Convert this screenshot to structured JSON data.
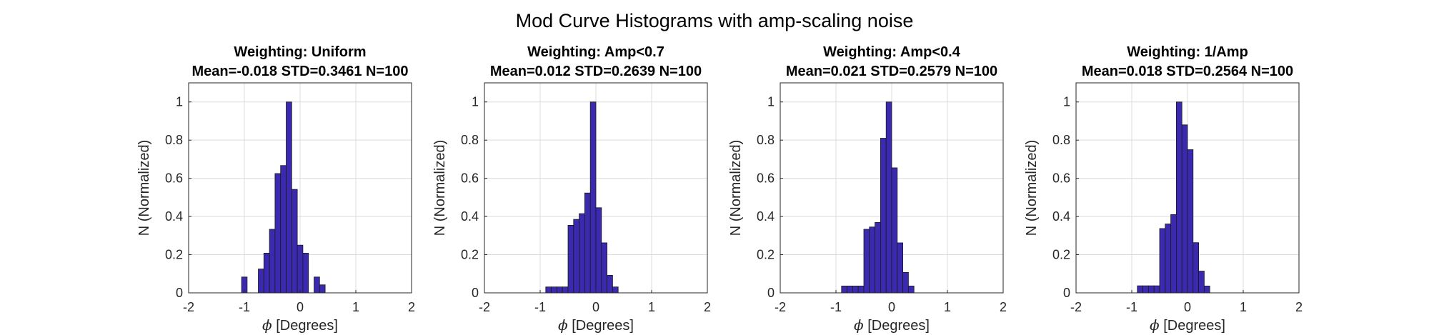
{
  "figure_title": "Mod Curve Histograms with amp-scaling noise",
  "colors": {
    "bar_fill": "#3b2ab0",
    "bar_edge": "#1a1a1a",
    "grid": "#dcdcdc"
  },
  "chart_data": [
    {
      "type": "bar",
      "title": "Weighting: Uniform",
      "subtitle": "Mean=-0.018 STD=0.3461 N=100",
      "xlabel_symbol": "ϕ",
      "xlabel": "[Degrees]",
      "ylabel": "N (Normalized)",
      "xlim": [
        -2,
        2
      ],
      "ylim": [
        0,
        1.1
      ],
      "xticks": [
        "-2",
        "-1",
        "0",
        "1",
        "2"
      ],
      "yticks": [
        "0",
        "0.2",
        "0.4",
        "0.6",
        "0.8",
        "1"
      ],
      "grid": true,
      "bin_edges": [
        -1.55,
        -1.45,
        -1.35,
        -1.25,
        -1.15,
        -1.05,
        -0.95,
        -0.85,
        -0.75,
        -0.65,
        -0.55,
        -0.45,
        -0.35,
        -0.25,
        -0.15,
        -0.05,
        0.05,
        0.15,
        0.25,
        0.35,
        0.45,
        0.55,
        0.65,
        0.75,
        0.85,
        0.95,
        1.05,
        1.15,
        1.25,
        1.35,
        1.45,
        1.55,
        1.65
      ],
      "values": [
        0,
        0,
        0,
        0,
        0,
        0.083,
        0,
        0,
        0.125,
        0.208,
        0.333,
        0.625,
        0.667,
        1.0,
        0.542,
        0.25,
        0.208,
        0,
        0.083,
        0.042,
        0,
        0,
        0,
        0,
        0,
        0,
        0,
        0,
        0,
        0,
        0,
        0
      ],
      "value_bins_start": 0
    },
    {
      "type": "bar",
      "title": "Weighting: Amp<0.7",
      "subtitle": "Mean=0.012 STD=0.2639 N=100",
      "xlabel_symbol": "ϕ",
      "xlabel": "[Degrees]",
      "ylabel": "N (Normalized)",
      "xlim": [
        -2,
        2
      ],
      "ylim": [
        0,
        1.1
      ],
      "xticks": [
        "-2",
        "-1",
        "0",
        "1",
        "2"
      ],
      "yticks": [
        "0",
        "0.2",
        "0.4",
        "0.6",
        "0.8",
        "1"
      ],
      "grid": true,
      "bin_edges": [
        -1.6,
        -1.5,
        -1.4,
        -1.3,
        -1.2,
        -1.1,
        -1.0,
        -0.9,
        -0.8,
        -0.7,
        -0.6,
        -0.5,
        -0.4,
        -0.3,
        -0.2,
        -0.1,
        0.0,
        0.1,
        0.2,
        0.3,
        0.4,
        0.5,
        0.6,
        0.7,
        0.8,
        0.9,
        1.0,
        1.1,
        1.2,
        1.3,
        1.4,
        1.5,
        1.6
      ],
      "values": [
        0,
        0,
        0,
        0,
        0,
        0,
        0,
        0.031,
        0.031,
        0.031,
        0.031,
        0.354,
        0.385,
        0.415,
        0.523,
        1.0,
        0.446,
        0.262,
        0.092,
        0.031,
        0,
        0,
        0,
        0,
        0,
        0,
        0,
        0,
        0,
        0,
        0,
        0
      ]
    },
    {
      "type": "bar",
      "title": "Weighting: Amp<0.4",
      "subtitle": "Mean=0.021 STD=0.2579 N=100",
      "xlabel_symbol": "ϕ",
      "xlabel": "[Degrees]",
      "ylabel": "N (Normalized)",
      "xlim": [
        -2,
        2
      ],
      "ylim": [
        0,
        1.1
      ],
      "xticks": [
        "-2",
        "-1",
        "0",
        "1",
        "2"
      ],
      "yticks": [
        "0",
        "0.2",
        "0.4",
        "0.6",
        "0.8",
        "1"
      ],
      "grid": true,
      "bin_edges": [
        -1.6,
        -1.5,
        -1.4,
        -1.3,
        -1.2,
        -1.1,
        -1.0,
        -0.9,
        -0.8,
        -0.7,
        -0.6,
        -0.5,
        -0.4,
        -0.3,
        -0.2,
        -0.1,
        0.0,
        0.1,
        0.2,
        0.3,
        0.4,
        0.5,
        0.6,
        0.7,
        0.8,
        0.9,
        1.0,
        1.1,
        1.2,
        1.3,
        1.4,
        1.5,
        1.6
      ],
      "values": [
        0,
        0,
        0,
        0,
        0,
        0,
        0,
        0.036,
        0.036,
        0.036,
        0.036,
        0.333,
        0.345,
        0.369,
        0.81,
        1.0,
        0.655,
        0.262,
        0.107,
        0.036,
        0,
        0,
        0,
        0,
        0,
        0,
        0,
        0,
        0,
        0,
        0,
        0
      ]
    },
    {
      "type": "bar",
      "title": "Weighting: 1/Amp",
      "subtitle": "Mean=0.018 STD=0.2564 N=100",
      "xlabel_symbol": "ϕ",
      "xlabel": "[Degrees]",
      "ylabel": "N (Normalized)",
      "xlim": [
        -2,
        2
      ],
      "ylim": [
        0,
        1.1
      ],
      "xticks": [
        "-2",
        "-1",
        "0",
        "1",
        "2"
      ],
      "yticks": [
        "0",
        "0.2",
        "0.4",
        "0.6",
        "0.8",
        "1"
      ],
      "grid": true,
      "bin_edges": [
        -1.6,
        -1.5,
        -1.4,
        -1.3,
        -1.2,
        -1.1,
        -1.0,
        -0.9,
        -0.8,
        -0.7,
        -0.6,
        -0.5,
        -0.4,
        -0.3,
        -0.2,
        -0.1,
        0.0,
        0.1,
        0.2,
        0.3,
        0.4,
        0.5,
        0.6,
        0.7,
        0.8,
        0.9,
        1.0,
        1.1,
        1.2,
        1.3,
        1.4,
        1.5,
        1.6
      ],
      "values": [
        0,
        0,
        0,
        0,
        0,
        0,
        0,
        0.037,
        0.037,
        0.037,
        0.037,
        0.337,
        0.361,
        0.41,
        1.0,
        0.88,
        0.75,
        0.263,
        0.114,
        0.036,
        0,
        0,
        0,
        0,
        0,
        0,
        0,
        0,
        0,
        0,
        0,
        0
      ]
    }
  ]
}
